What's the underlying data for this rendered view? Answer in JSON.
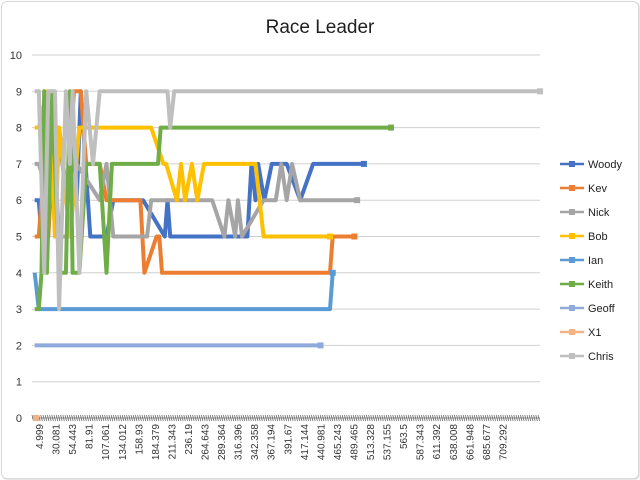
{
  "chart_data": {
    "type": "line",
    "title": "Race Leader",
    "xlabel": "",
    "ylabel": "",
    "ylim": [
      0,
      10
    ],
    "yticks": [
      "0",
      "1",
      "2",
      "3",
      "4",
      "5",
      "6",
      "7",
      "8",
      "9",
      "10"
    ],
    "x_tick_labels": [
      "4.999",
      "30.081",
      "54.443",
      "81.91",
      "107.061",
      "134.012",
      "158.93",
      "184.379",
      "211.343",
      "236.19",
      "264.643",
      "289.364",
      "316.396",
      "342.358",
      "367.194",
      "391.67",
      "417.144",
      "440.981",
      "465.243",
      "489.465",
      "513.328",
      "537.155",
      "563.5",
      "587.343",
      "611.392",
      "638.008",
      "661.948",
      "685.677",
      "709.292"
    ],
    "x_range": [
      0,
      750
    ],
    "grid": true,
    "legend_position": "right",
    "series": [
      {
        "name": "Woody",
        "color": "#4472C4",
        "x": [
          4,
          10,
          14,
          18,
          26,
          34,
          38,
          52,
          60,
          66,
          72,
          86,
          110,
          120,
          160,
          164,
          196,
          200,
          204,
          234,
          240,
          256,
          266,
          318,
          324,
          330,
          334,
          343,
          354,
          376,
          396,
          415,
          490
        ],
        "values": [
          6,
          6,
          5,
          6,
          8,
          6,
          8,
          6,
          8,
          6,
          9,
          5,
          5,
          6,
          6,
          6,
          5,
          6,
          5,
          5,
          5,
          5,
          5,
          5,
          7,
          6,
          7,
          6,
          7,
          7,
          6,
          7,
          7
        ]
      },
      {
        "name": "Kev",
        "color": "#ED7D31",
        "x": [
          4,
          10,
          18,
          24,
          30,
          34,
          40,
          52,
          62,
          72,
          80,
          100,
          110,
          128,
          160,
          166,
          184,
          188,
          192,
          440,
          444,
          476
        ],
        "values": [
          5,
          5,
          7,
          5,
          7,
          5,
          8,
          6,
          9,
          9,
          7,
          7,
          6,
          6,
          6,
          4,
          5,
          5,
          4,
          4,
          5,
          5
        ]
      },
      {
        "name": "Nick",
        "color": "#A5A5A5",
        "x": [
          4,
          10,
          26,
          30,
          34,
          40,
          56,
          66,
          100,
          110,
          120,
          140,
          170,
          176,
          200,
          214,
          222,
          226,
          236,
          246,
          256,
          266,
          284,
          290,
          300,
          304,
          310,
          342,
          360,
          368,
          376,
          384,
          396,
          415,
          430,
          444,
          456,
          480
        ],
        "values": [
          7,
          7,
          6,
          7,
          7,
          5,
          5,
          7,
          6,
          7,
          5,
          5,
          5,
          6,
          6,
          6,
          6,
          6,
          6,
          6,
          6,
          6,
          5,
          6,
          5,
          6,
          5,
          6,
          6,
          7,
          6,
          7,
          6,
          6,
          6,
          6,
          6,
          6
        ]
      },
      {
        "name": "Bob",
        "color": "#FFC000",
        "x": [
          4,
          10,
          22,
          28,
          34,
          40,
          56,
          70,
          100,
          110,
          124,
          130,
          170,
          176,
          194,
          198,
          214,
          220,
          226,
          236,
          244,
          254,
          274,
          290,
          304,
          310,
          324,
          330,
          342,
          360,
          376,
          396,
          415,
          440
        ],
        "values": [
          8,
          8,
          9,
          8,
          5,
          8,
          5,
          8,
          8,
          8,
          8,
          8,
          8,
          8,
          7,
          7,
          6,
          7,
          6,
          7,
          6,
          7,
          7,
          7,
          7,
          7,
          7,
          7,
          5,
          5,
          5,
          5,
          5,
          5
        ]
      },
      {
        "name": "Ian",
        "color": "#5B9BD5",
        "x": [
          4,
          10,
          18,
          22,
          40,
          50,
          60,
          120,
          170,
          180,
          200,
          320,
          420,
          440,
          444
        ],
        "values": [
          4,
          3,
          3,
          3,
          3,
          3,
          3,
          3,
          3,
          3,
          3,
          3,
          3,
          3,
          4
        ]
      },
      {
        "name": "Keith",
        "color": "#70AD47",
        "x": [
          4,
          10,
          14,
          18,
          22,
          30,
          40,
          50,
          56,
          60,
          70,
          80,
          100,
          110,
          118,
          130,
          150,
          160,
          170,
          186,
          190,
          196,
          214,
          250,
          300,
          350,
          400,
          450,
          500,
          530
        ],
        "values": [
          3,
          3,
          4,
          9,
          4,
          9,
          4,
          4,
          9,
          4,
          4,
          7,
          7,
          4,
          7,
          7,
          7,
          7,
          7,
          7,
          8,
          8,
          8,
          8,
          8,
          8,
          8,
          8,
          8,
          8
        ]
      },
      {
        "name": "Geoff",
        "color": "#8FAADC",
        "x": [
          4,
          10,
          14,
          18,
          22,
          26,
          30,
          100,
          200,
          300,
          400,
          426
        ],
        "values": [
          2,
          2,
          2,
          2,
          2,
          2,
          2,
          2,
          2,
          2,
          2,
          2
        ]
      },
      {
        "name": "X1",
        "color": "#F4B183",
        "x": [
          4,
          6
        ],
        "values": [
          0,
          0
        ]
      },
      {
        "name": "Chris",
        "color": "#BFBFBF",
        "x": [
          4,
          10,
          18,
          24,
          34,
          40,
          50,
          56,
          60,
          70,
          80,
          90,
          100,
          150,
          200,
          204,
          210,
          250,
          350,
          450,
          550,
          600,
          700,
          750
        ],
        "values": [
          9,
          9,
          4,
          9,
          9,
          3,
          9,
          7,
          9,
          4,
          9,
          7,
          9,
          9,
          9,
          8,
          9,
          9,
          9,
          9,
          9,
          9,
          9,
          9
        ]
      }
    ]
  }
}
